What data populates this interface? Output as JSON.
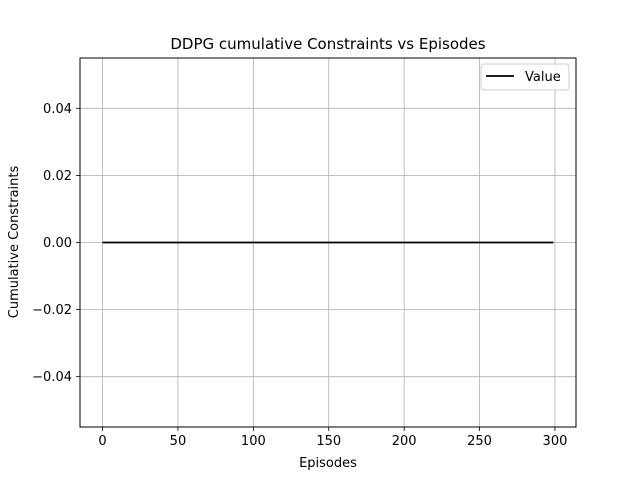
{
  "chart_data": {
    "type": "line",
    "title": "DDPG cumulative Constraints vs Episodes",
    "xlabel": "Episodes",
    "ylabel": "Cumulative Constraints",
    "xlim": [
      -14.95,
      313.95
    ],
    "ylim": [
      -0.055,
      0.055
    ],
    "xticks": [
      0,
      50,
      100,
      150,
      200,
      250,
      300
    ],
    "xtick_labels": [
      "0",
      "50",
      "100",
      "150",
      "200",
      "250",
      "300"
    ],
    "yticks": [
      -0.04,
      -0.02,
      0.0,
      0.02,
      0.04
    ],
    "ytick_labels": [
      "−0.04",
      "−0.02",
      "0.00",
      "0.02",
      "0.04"
    ],
    "grid": true,
    "legend_position": "upper right",
    "series": [
      {
        "name": "Value",
        "color": "#000000",
        "x": [
          0,
          299
        ],
        "y": [
          0,
          0
        ]
      }
    ]
  }
}
